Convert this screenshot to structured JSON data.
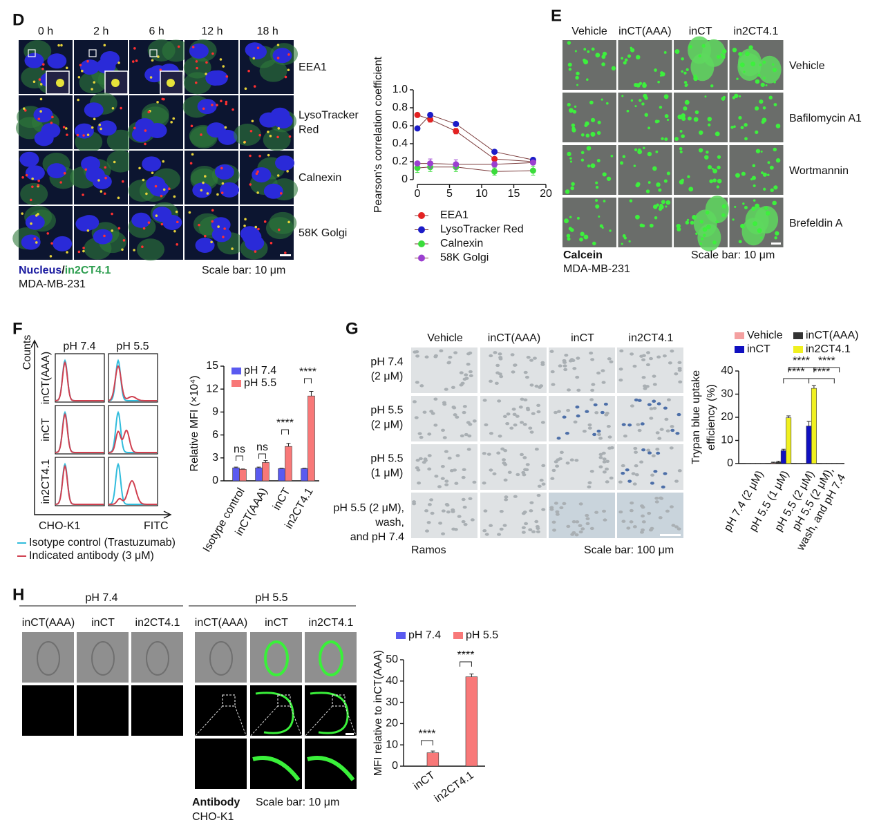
{
  "panels": {
    "D": {
      "label": "D",
      "timepoints": [
        "0 h",
        "2 h",
        "6 h",
        "12 h",
        "18 h"
      ],
      "rows": [
        [
          "EEA1"
        ],
        [
          "LysoTracker",
          "Red"
        ],
        [
          "Calnexin"
        ],
        [
          "58K Golgi"
        ]
      ],
      "stain": [
        "Nucleus",
        "/",
        "in2CT4.1"
      ],
      "cell_line": "MDA-MB-231",
      "scale_bar": "Scale bar: 10 μm"
    },
    "E": {
      "label": "E",
      "columns": [
        "Vehicle",
        "inCT(AAA)",
        "inCT",
        "in2CT4.1"
      ],
      "rows": [
        "Vehicle",
        "Bafilomycin A1",
        "Wortmannin",
        "Brefeldin A"
      ],
      "stain": "Calcein",
      "cell_line": "MDA-MB-231",
      "scale_bar": "Scale bar: 10 μm"
    },
    "F": {
      "label": "F",
      "y_axis": "Counts",
      "columns": [
        "pH 7.4",
        "pH 5.5"
      ],
      "rows": [
        "inCT(AAA)",
        "inCT",
        "in2CT4.1"
      ],
      "cell_line": "CHO-K1",
      "x_axis": "FITC",
      "legend": [
        "Isotype control (Trastuzumab)",
        "Indicated antibody (3 μM)"
      ]
    },
    "G": {
      "label": "G",
      "columns": [
        "Vehicle",
        "inCT(AAA)",
        "inCT",
        "in2CT4.1"
      ],
      "rows": [
        [
          "pH 7.4",
          "(2 μM)"
        ],
        [
          "pH 5.5",
          "(2 μM)"
        ],
        [
          "pH 5.5",
          "(1 μM)"
        ],
        [
          "pH 5.5 (2 μM),",
          "wash,",
          "and pH 7.4"
        ]
      ],
      "cell_line": "Ramos",
      "scale_bar": "Scale bar: 100 μm"
    },
    "H": {
      "label": "H",
      "groups": [
        "pH 7.4",
        "pH 5.5"
      ],
      "columns": [
        "inCT(AAA)",
        "inCT",
        "in2CT4.1",
        "inCT(AAA)",
        "inCT",
        "in2CT4.1"
      ],
      "stain": "Antibody",
      "cell_line": "CHO-K1",
      "scale_bar": "Scale bar: 10 μm"
    }
  },
  "chart_data": [
    {
      "type": "line",
      "y_label": "Pearson's correlation coefficient",
      "x": [
        0,
        2,
        6,
        12,
        18
      ],
      "xlim": [
        0,
        20
      ],
      "xticks": [
        0,
        5,
        10,
        15,
        20
      ],
      "ylim": [
        0,
        1
      ],
      "yticks": [
        0,
        0.2,
        0.4,
        0.6,
        0.8,
        {
          "value": 1,
          "label": "1.0"
        }
      ],
      "series": [
        {
          "name": "EEA1",
          "color": "#e32222",
          "values": [
            0.72,
            0.67,
            0.54,
            0.23,
            0.2
          ],
          "errors": [
            0.02,
            0.03,
            0.03,
            0.02,
            0.02
          ]
        },
        {
          "name": "LysoTracker Red",
          "color": "#1c1cc8",
          "values": [
            0.57,
            0.72,
            0.62,
            0.31,
            0.22
          ],
          "errors": [
            0.02,
            0.02,
            0.01,
            0.02,
            0.02
          ]
        },
        {
          "name": "Calnexin",
          "color": "#3bdc3b",
          "values": [
            0.13,
            0.14,
            0.14,
            0.09,
            0.1
          ],
          "errors": [
            0.05,
            0.05,
            0.05,
            0.04,
            0.05
          ]
        },
        {
          "name": "58K Golgi",
          "color": "#9b3fd0",
          "values": [
            0.18,
            0.18,
            0.17,
            0.17,
            0.19
          ],
          "errors": [
            0.02,
            0.05,
            0.05,
            0.03,
            0.02
          ]
        }
      ]
    },
    {
      "type": "bar",
      "y_label": "Relative MFI (×10⁴)",
      "categories": [
        "Isotype control",
        "inCT(AAA)",
        "inCT",
        "in2CT4.1"
      ],
      "ylim": [
        0,
        15
      ],
      "yticks": [
        0,
        3,
        6,
        9,
        12,
        15
      ],
      "series": [
        {
          "name": "pH 7.4",
          "color": "#5a5af0",
          "values": [
            1.7,
            1.7,
            1.6,
            1.6
          ],
          "errors": [
            0.1,
            0.1,
            0.05,
            0.05
          ]
        },
        {
          "name": "pH 5.5",
          "color": "#f87878",
          "values": [
            1.5,
            2.4,
            4.5,
            11.1
          ],
          "errors": [
            0.05,
            0.25,
            0.4,
            0.6
          ]
        }
      ],
      "annotations": [
        "ns",
        "ns",
        "****",
        "****"
      ]
    },
    {
      "type": "bar",
      "y_label": [
        "Trypan blue uptake",
        "efficiency (%)"
      ],
      "categories": [
        "pH 7.4 (2 μM)",
        "pH 5.5 (1 μM)",
        "pH 5.5 (2 μM)",
        [
          "pH 5.5 (2 μM),",
          "wash, and pH 7.4"
        ]
      ],
      "ylim": [
        0,
        40
      ],
      "yticks": [
        0,
        10,
        20,
        30,
        40
      ],
      "series": [
        {
          "name": "Vehicle",
          "color": "#f4a0a0",
          "values": [
            0,
            0.3,
            0,
            0
          ],
          "errors": [
            0,
            0.3,
            0,
            0
          ]
        },
        {
          "name": "inCT(AAA)",
          "color": "#333333",
          "values": [
            0,
            0.6,
            0,
            0
          ],
          "errors": [
            0,
            0.4,
            0,
            0
          ]
        },
        {
          "name": "inCT",
          "color": "#1010c0",
          "values": [
            0,
            5.6,
            16.2,
            0
          ],
          "errors": [
            0,
            0.6,
            2,
            0
          ]
        },
        {
          "name": "in2CT4.1",
          "color": "#f0f020",
          "values": [
            0,
            19.8,
            32.5,
            0
          ],
          "errors": [
            0,
            0.8,
            1.2,
            0
          ]
        }
      ],
      "annotations": [
        "****",
        "****",
        "****",
        "****"
      ]
    },
    {
      "type": "bar",
      "y_label": "MFI relative to inCT(AAA)",
      "categories": [
        "inCT",
        "in2CT4.1"
      ],
      "ylim": [
        0,
        50
      ],
      "yticks": [
        0,
        10,
        20,
        30,
        40,
        50
      ],
      "series": [
        {
          "name": "pH 7.4",
          "color": "#5a5af0",
          "values": [
            0,
            0
          ]
        },
        {
          "name": "pH 5.5",
          "color": "#f87878",
          "values": [
            6.3,
            42
          ],
          "errors": [
            0.8,
            1.3
          ]
        }
      ],
      "annotations": [
        "****",
        "****"
      ]
    }
  ]
}
